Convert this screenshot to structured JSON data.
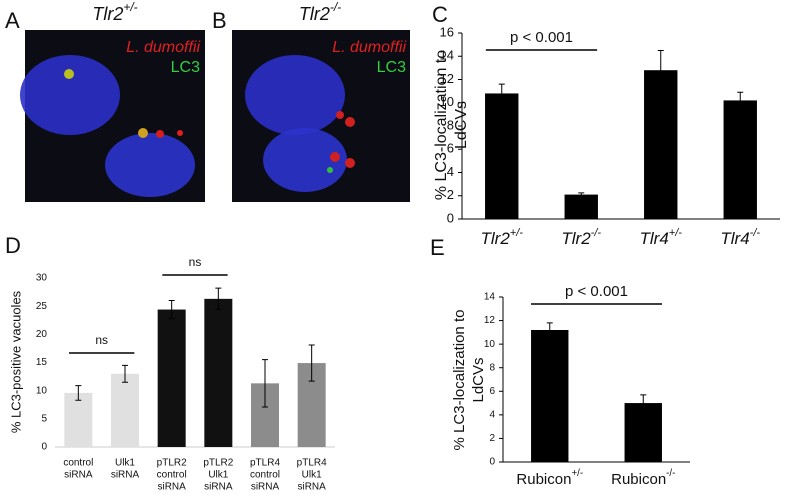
{
  "panels": [
    {
      "letter": "A",
      "title": "Tlr2",
      "superscript": "+/-",
      "labels": [
        "L. dumoffii",
        "LC3"
      ]
    },
    {
      "letter": "B",
      "title": "Tlr2",
      "superscript": "-/-",
      "labels": [
        "L. dumoffii",
        "LC3"
      ]
    }
  ],
  "chart_data": [
    {
      "type": "bar",
      "letter": "C",
      "y_label": [
        "% LC3-localization to",
        "LdCVs"
      ],
      "categories": [
        "Tlr2",
        "Tlr2",
        "Tlr4",
        "Tlr4"
      ],
      "category_superscripts": [
        "+/-",
        "-/-",
        "+/-",
        "-/-"
      ],
      "values": [
        10.8,
        2.1,
        12.8,
        10.2
      ],
      "errors": [
        0.8,
        0.15,
        1.7,
        0.7
      ],
      "colors": [
        "#000000",
        "#000000",
        "#000000",
        "#000000"
      ],
      "ylim": [
        0,
        16
      ],
      "yticks": [
        0,
        2,
        4,
        6,
        8,
        10,
        12,
        14,
        16
      ],
      "annotations": [
        "p < 0.001"
      ]
    },
    {
      "type": "bar",
      "letter": "D",
      "y_label": [
        "% LC3-positive vacuoles"
      ],
      "categories": [
        [
          "control",
          "siRNA"
        ],
        [
          "Ulk1",
          "siRNA"
        ],
        [
          "pTLR2",
          "control",
          "siRNA"
        ],
        [
          "pTLR2",
          "Ulk1",
          "siRNA"
        ],
        [
          "pTLR4",
          "control",
          "siRNA"
        ],
        [
          "pTLR4",
          "Ulk1",
          "siRNA"
        ]
      ],
      "values": [
        9.6,
        13,
        24.4,
        26.3,
        11.3,
        14.9
      ],
      "errors": [
        1.3,
        1.5,
        1.6,
        1.9,
        4.2,
        3.2
      ],
      "colors": [
        "#e0e0e0",
        "#e0e0e0",
        "#111111",
        "#111111",
        "#8c8c8c",
        "#8c8c8c"
      ],
      "ylim": [
        0,
        30
      ],
      "yticks": [
        0,
        5,
        10,
        15,
        20,
        25,
        30
      ],
      "annotations": [
        "ns",
        "ns"
      ]
    },
    {
      "type": "bar",
      "letter": "E",
      "y_label": [
        "% LC3-localization to",
        "LdCVs"
      ],
      "categories": [
        "Rubicon",
        "Rubicon"
      ],
      "category_superscripts": [
        "+/-",
        "-/-"
      ],
      "values": [
        11.2,
        5.0
      ],
      "errors": [
        0.6,
        0.7
      ],
      "colors": [
        "#000000",
        "#000000"
      ],
      "ylim": [
        0,
        14
      ],
      "yticks": [
        0,
        2,
        4,
        6,
        8,
        10,
        12,
        14
      ],
      "annotations": [
        "p < 0.001"
      ]
    }
  ]
}
